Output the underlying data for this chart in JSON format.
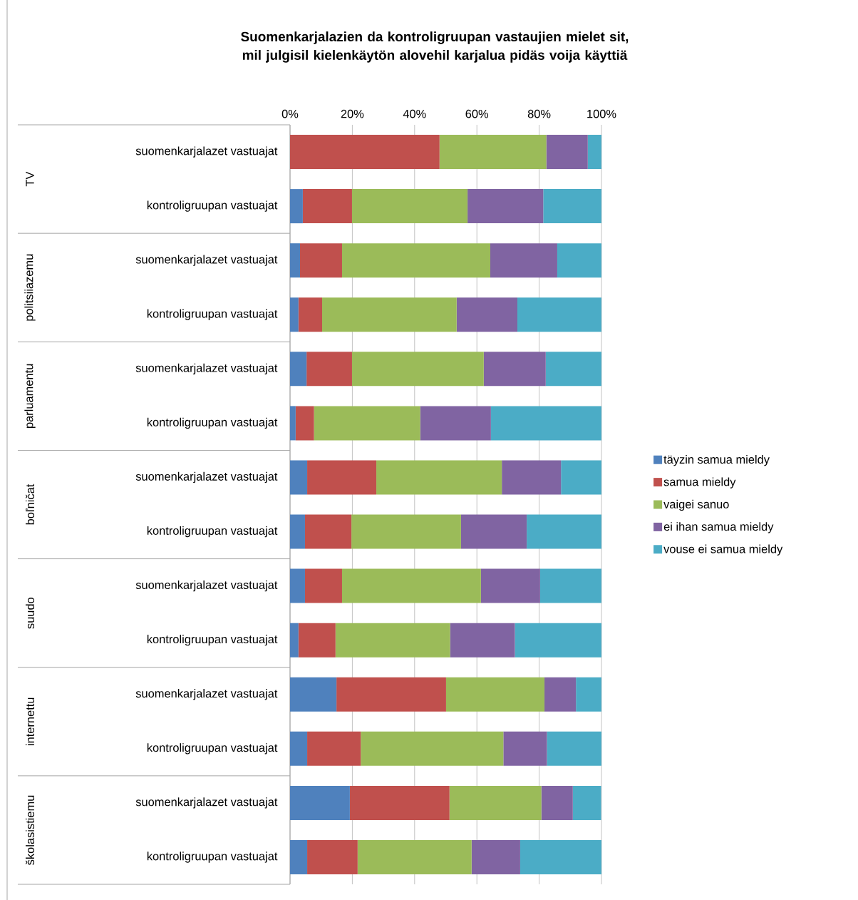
{
  "chart_data": {
    "type": "bar",
    "orientation": "horizontal",
    "stacked": true,
    "title": "Suomenkarjalazien da kontroligruupan vastaujien mielet sit, mil julgisil kielenkäytön alovehil karjalua pidäs voija käyttiä",
    "categories": [
      "suomenkarjalazet vastuajat",
      "kontroligruupan vastuajat",
      "suomenkarjalazet vastuajat",
      "kontroligruupan vastuajat",
      "suomenkarjalazet vastuajat",
      "kontroligruupan vastuajat",
      "suomenkarjalazet vastuajat",
      "kontroligruupan vastuajat",
      "suomenkarjalazet vastuajat",
      "kontroligruupan vastuajat",
      "suomenkarjalazet vastuajat",
      "kontroligruupan vastuajat",
      "suomenkarjalazet vastuajat",
      "kontroligruupan vastuajat"
    ],
    "annotations": [
      "TV",
      "politsiiazemu",
      "parluamentu",
      "boľničat",
      "suudo",
      "internettu",
      "školasistiemu"
    ],
    "series": [
      {
        "name": "täyzin samua mieldy",
        "color": "#4f81bd",
        "values": [
          0,
          4.1,
          3.2,
          2.7,
          5.3,
          1.8,
          5.5,
          4.8,
          4.8,
          2.7,
          14.9,
          5.5,
          19.2,
          5.5
        ]
      },
      {
        "name": "samua mieldy",
        "color": "#c0504d",
        "values": [
          48,
          15.8,
          13.5,
          7.6,
          14.6,
          5.9,
          22.2,
          14.9,
          11.9,
          11.9,
          35.2,
          17.2,
          32,
          16.2
        ]
      },
      {
        "name": "vaigei sanuo",
        "color": "#9bbb59",
        "values": [
          34.3,
          37.1,
          47.6,
          43.2,
          42.3,
          34.1,
          40.3,
          35.2,
          44.6,
          36.8,
          31.6,
          45.8,
          29.5,
          36.6
        ]
      },
      {
        "name": "ei ihan samua mieldy",
        "color": "#8064a2",
        "values": [
          13.3,
          24.3,
          21.5,
          19.5,
          19.9,
          22.7,
          19,
          21.1,
          19,
          20.8,
          10.1,
          14,
          10.1,
          15.6
        ]
      },
      {
        "name": "vouse ei samua mieldy",
        "color": "#4bacc6",
        "values": [
          4.4,
          18.7,
          14.2,
          27,
          17.9,
          35.5,
          13,
          24,
          19.7,
          27.8,
          8.2,
          17.5,
          9.1,
          26.1
        ]
      }
    ],
    "xlim": [
      0,
      100
    ],
    "xticks": [
      {
        "value": 0,
        "label": "0%"
      },
      {
        "value": 20,
        "label": "20%"
      },
      {
        "value": 40,
        "label": "40%"
      },
      {
        "value": 60,
        "label": "60%"
      },
      {
        "value": 80,
        "label": "80%"
      },
      {
        "value": 100,
        "label": "100%"
      }
    ],
    "grid": "x",
    "legend": "right"
  }
}
